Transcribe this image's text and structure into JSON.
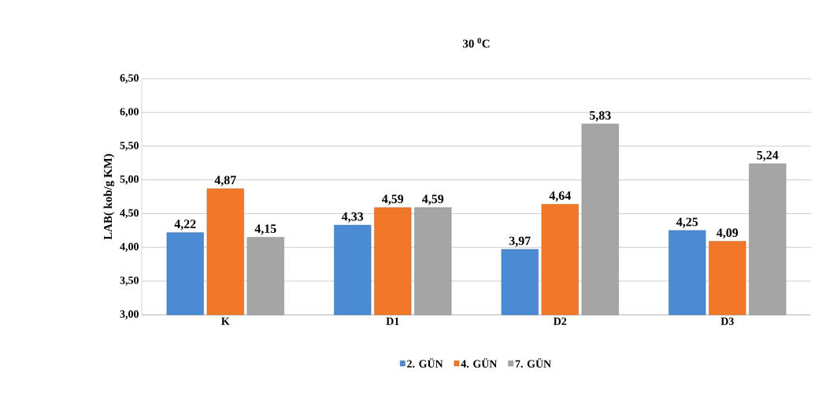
{
  "chart_data": {
    "type": "bar",
    "title": "30 $^{0}$C",
    "ylabel": "LAB( kob/g KM)",
    "categories": [
      "K",
      "D1",
      "D2",
      "D3"
    ],
    "series": [
      {
        "name": "2. GÜN",
        "color": "#4a8bd4",
        "values": [
          4.22,
          4.33,
          3.97,
          4.25
        ],
        "value_labels": [
          "4,22",
          "4,33",
          "3,97",
          "4,25"
        ]
      },
      {
        "name": "4. GÜN",
        "color": "#f07828",
        "values": [
          4.87,
          4.59,
          4.64,
          4.09
        ],
        "value_labels": [
          "4,87",
          "4,59",
          "4,64",
          "4,09"
        ]
      },
      {
        "name": "7. GÜN",
        "color": "#a5a5a5",
        "values": [
          4.15,
          4.59,
          5.83,
          5.24
        ],
        "value_labels": [
          "4,15",
          "4,59",
          "5,83",
          "5,24"
        ]
      }
    ],
    "ylim": [
      3,
      6.5
    ],
    "yticks": [
      {
        "value": 3,
        "label": "3,00"
      },
      {
        "value": 3.5,
        "label": "3,50"
      },
      {
        "value": 4,
        "label": "4,00"
      },
      {
        "value": 4.5,
        "label": "4,50"
      },
      {
        "value": 5,
        "label": "5,00"
      },
      {
        "value": 5.5,
        "label": "5,50"
      },
      {
        "value": 6,
        "label": "6,00"
      },
      {
        "value": 6.5,
        "label": "6,50"
      }
    ],
    "grid": "y",
    "legend": "bottom"
  }
}
